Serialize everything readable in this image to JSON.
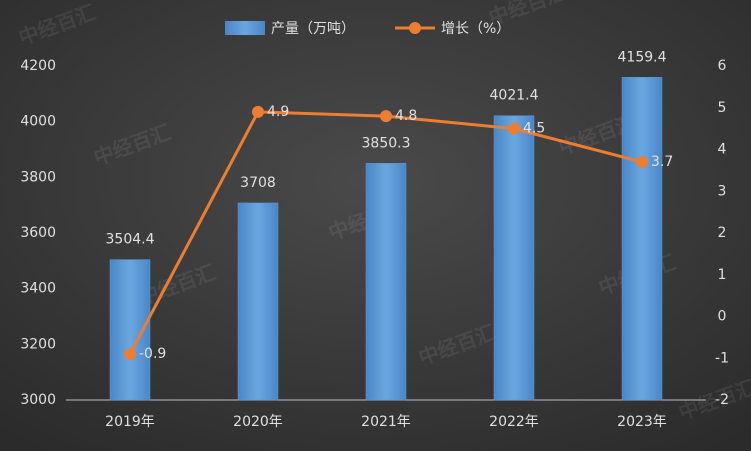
{
  "chart_data": {
    "type": "bar",
    "categories": [
      "2019年",
      "2020年",
      "2021年",
      "2022年",
      "2023年"
    ],
    "series": [
      {
        "name": "产量（万吨）",
        "type": "bar",
        "color": "#5b9bd5",
        "values": [
          3504.4,
          3708,
          3850.3,
          4021.4,
          4159.4
        ]
      },
      {
        "name": "增长（%）",
        "type": "line",
        "axis": "y2",
        "color": "#ed7d31",
        "values": [
          -0.9,
          4.9,
          4.8,
          4.5,
          3.7
        ]
      }
    ],
    "ylim": [
      3000,
      4200
    ],
    "yticks": [
      3000,
      3200,
      3400,
      3600,
      3800,
      4000,
      4200
    ],
    "y2lim": [
      -2,
      6
    ],
    "y2ticks": [
      -2,
      -1,
      0,
      1,
      2,
      3,
      4,
      5,
      6
    ],
    "legend": "top",
    "watermark": "中经百汇"
  }
}
